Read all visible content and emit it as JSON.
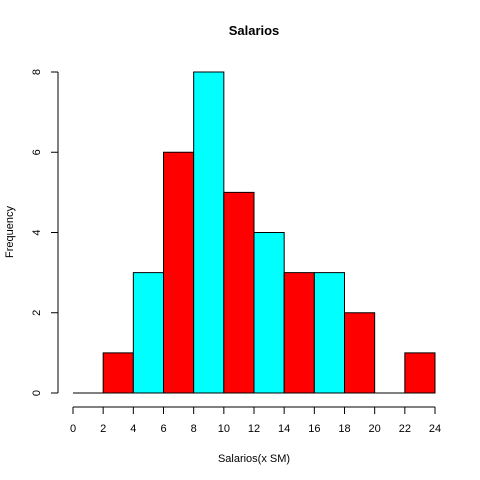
{
  "chart_data": {
    "type": "bar",
    "title": "Salarios",
    "xlabel": "Salarios(x SM)",
    "ylabel": "Frequency",
    "bins": [
      {
        "from": 0,
        "to": 2,
        "count": 0
      },
      {
        "from": 2,
        "to": 4,
        "count": 1
      },
      {
        "from": 4,
        "to": 6,
        "count": 3
      },
      {
        "from": 6,
        "to": 8,
        "count": 6
      },
      {
        "from": 8,
        "to": 10,
        "count": 8
      },
      {
        "from": 10,
        "to": 12,
        "count": 5
      },
      {
        "from": 12,
        "to": 14,
        "count": 4
      },
      {
        "from": 14,
        "to": 16,
        "count": 3
      },
      {
        "from": 16,
        "to": 18,
        "count": 3
      },
      {
        "from": 18,
        "to": 20,
        "count": 2
      },
      {
        "from": 20,
        "to": 22,
        "count": 0
      },
      {
        "from": 22,
        "to": 24,
        "count": 1
      }
    ],
    "bar_colors": [
      "#00ffff",
      "#ff0000"
    ],
    "xlim": [
      0,
      24
    ],
    "ylim": [
      0,
      8
    ],
    "x_ticks": [
      "0",
      "2",
      "4",
      "6",
      "8",
      "10",
      "12",
      "14",
      "16",
      "18",
      "20",
      "22",
      "24"
    ],
    "y_ticks": [
      "0",
      "2",
      "4",
      "6",
      "8"
    ],
    "grid": false
  }
}
